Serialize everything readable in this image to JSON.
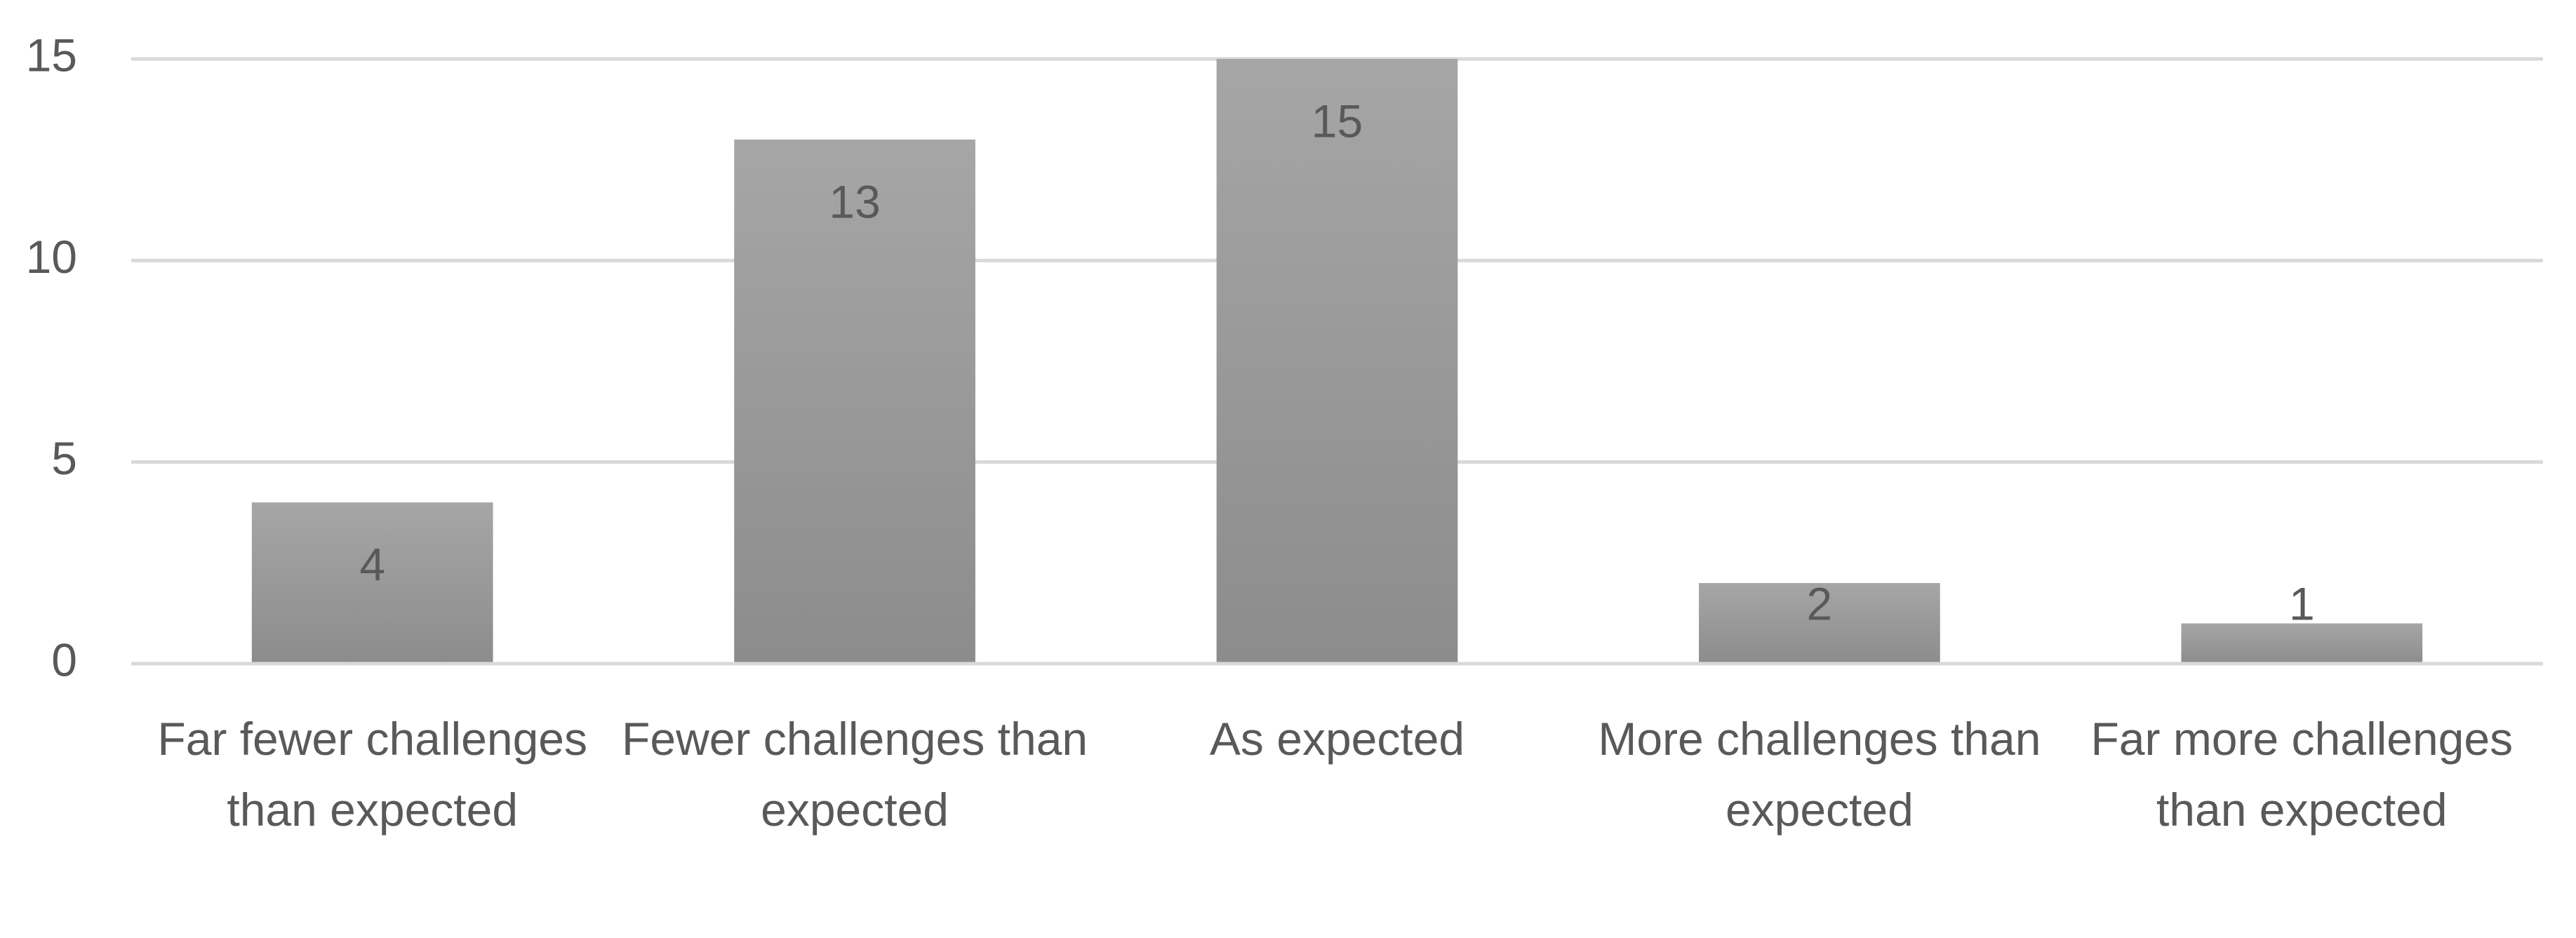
{
  "chart_data": {
    "type": "bar",
    "categories": [
      "Far fewer challenges than expected",
      "Fewer challenges than expected",
      "As expected",
      "More challenges than expected",
      "Far more challenges than expected"
    ],
    "values": [
      4,
      13,
      15,
      2,
      1
    ],
    "color": "#a6a6a6",
    "ylim": [
      0,
      15
    ],
    "yticks": [
      0,
      5,
      10,
      15
    ],
    "grid": true
  }
}
